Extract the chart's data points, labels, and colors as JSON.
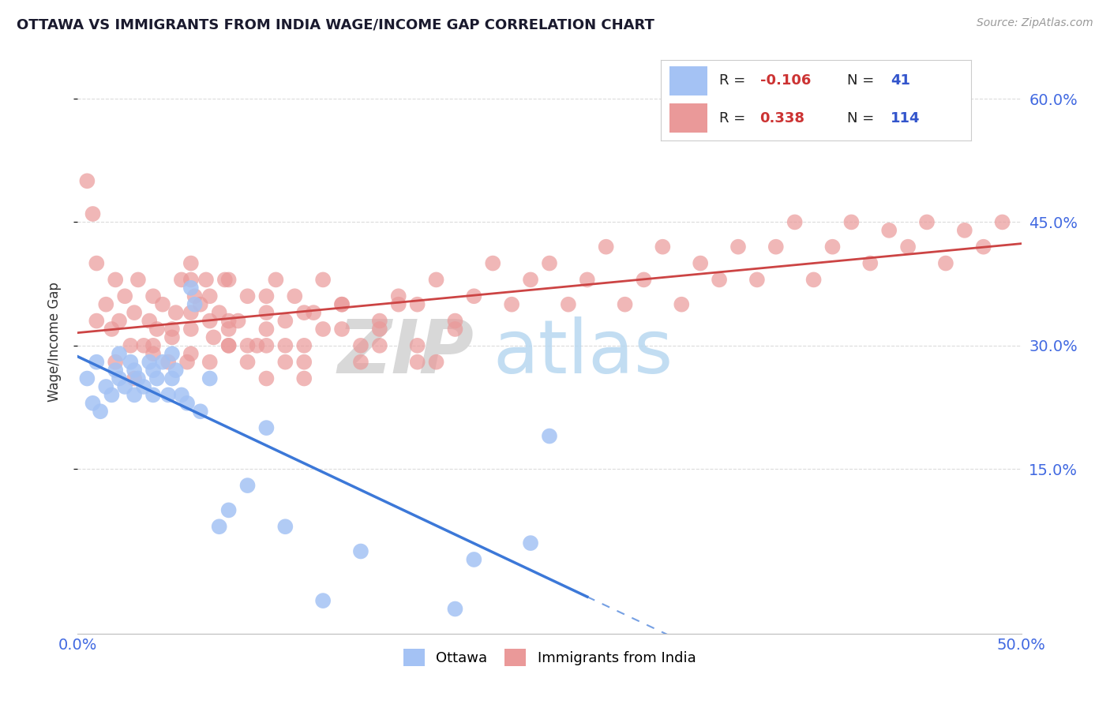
{
  "title": "OTTAWA VS IMMIGRANTS FROM INDIA WAGE/INCOME GAP CORRELATION CHART",
  "source": "Source: ZipAtlas.com",
  "ylabel": "Wage/Income Gap",
  "xlim": [
    0.0,
    0.5
  ],
  "ylim": [
    -0.05,
    0.66
  ],
  "yticks": [
    0.15,
    0.3,
    0.45,
    0.6
  ],
  "ytick_labels": [
    "15.0%",
    "30.0%",
    "45.0%",
    "60.0%"
  ],
  "blue_color": "#a4c2f4",
  "pink_color": "#ea9999",
  "trend_blue": "#3c78d8",
  "trend_pink": "#cc4444",
  "background": "#ffffff",
  "grid_color": "#cccccc",
  "ottawa_x": [
    0.005,
    0.008,
    0.01,
    0.012,
    0.015,
    0.018,
    0.02,
    0.022,
    0.022,
    0.025,
    0.028,
    0.03,
    0.03,
    0.032,
    0.035,
    0.038,
    0.04,
    0.04,
    0.042,
    0.045,
    0.048,
    0.05,
    0.05,
    0.052,
    0.055,
    0.058,
    0.06,
    0.062,
    0.065,
    0.07,
    0.075,
    0.08,
    0.09,
    0.1,
    0.11,
    0.13,
    0.15,
    0.2,
    0.21,
    0.24,
    0.25
  ],
  "ottawa_y": [
    0.26,
    0.23,
    0.28,
    0.22,
    0.25,
    0.24,
    0.27,
    0.26,
    0.29,
    0.25,
    0.28,
    0.24,
    0.27,
    0.26,
    0.25,
    0.28,
    0.24,
    0.27,
    0.26,
    0.28,
    0.24,
    0.26,
    0.29,
    0.27,
    0.24,
    0.23,
    0.37,
    0.35,
    0.22,
    0.26,
    0.08,
    0.1,
    0.13,
    0.2,
    0.08,
    -0.01,
    0.05,
    -0.02,
    0.04,
    0.06,
    0.19
  ],
  "india_x": [
    0.005,
    0.008,
    0.01,
    0.015,
    0.018,
    0.02,
    0.022,
    0.025,
    0.028,
    0.03,
    0.032,
    0.035,
    0.038,
    0.04,
    0.042,
    0.045,
    0.048,
    0.05,
    0.052,
    0.055,
    0.058,
    0.06,
    0.062,
    0.065,
    0.068,
    0.07,
    0.072,
    0.075,
    0.078,
    0.08,
    0.085,
    0.09,
    0.095,
    0.1,
    0.105,
    0.11,
    0.115,
    0.12,
    0.125,
    0.13,
    0.14,
    0.15,
    0.16,
    0.17,
    0.18,
    0.19,
    0.2,
    0.21,
    0.22,
    0.23,
    0.24,
    0.25,
    0.26,
    0.27,
    0.28,
    0.29,
    0.3,
    0.31,
    0.32,
    0.33,
    0.34,
    0.35,
    0.36,
    0.37,
    0.38,
    0.39,
    0.4,
    0.41,
    0.42,
    0.43,
    0.44,
    0.45,
    0.46,
    0.47,
    0.48,
    0.49,
    0.01,
    0.02,
    0.03,
    0.04,
    0.05,
    0.06,
    0.07,
    0.08,
    0.09,
    0.1,
    0.11,
    0.12,
    0.13,
    0.14,
    0.15,
    0.16,
    0.17,
    0.18,
    0.19,
    0.2,
    0.06,
    0.07,
    0.08,
    0.09,
    0.1,
    0.11,
    0.12,
    0.06,
    0.08,
    0.1,
    0.12,
    0.14,
    0.16,
    0.18,
    0.04,
    0.06,
    0.08,
    0.1
  ],
  "india_y": [
    0.5,
    0.46,
    0.4,
    0.35,
    0.32,
    0.38,
    0.33,
    0.36,
    0.3,
    0.34,
    0.38,
    0.3,
    0.33,
    0.29,
    0.32,
    0.35,
    0.28,
    0.31,
    0.34,
    0.38,
    0.28,
    0.32,
    0.36,
    0.35,
    0.38,
    0.28,
    0.31,
    0.34,
    0.38,
    0.3,
    0.33,
    0.36,
    0.3,
    0.34,
    0.38,
    0.33,
    0.36,
    0.3,
    0.34,
    0.38,
    0.35,
    0.3,
    0.33,
    0.36,
    0.35,
    0.38,
    0.33,
    0.36,
    0.4,
    0.35,
    0.38,
    0.4,
    0.35,
    0.38,
    0.42,
    0.35,
    0.38,
    0.42,
    0.35,
    0.4,
    0.38,
    0.42,
    0.38,
    0.42,
    0.45,
    0.38,
    0.42,
    0.45,
    0.4,
    0.44,
    0.42,
    0.45,
    0.4,
    0.44,
    0.42,
    0.45,
    0.33,
    0.28,
    0.26,
    0.3,
    0.32,
    0.29,
    0.33,
    0.3,
    0.28,
    0.26,
    0.3,
    0.28,
    0.32,
    0.35,
    0.28,
    0.32,
    0.35,
    0.3,
    0.28,
    0.32,
    0.38,
    0.36,
    0.33,
    0.3,
    0.32,
    0.28,
    0.26,
    0.4,
    0.38,
    0.36,
    0.34,
    0.32,
    0.3,
    0.28,
    0.36,
    0.34,
    0.32,
    0.3
  ]
}
